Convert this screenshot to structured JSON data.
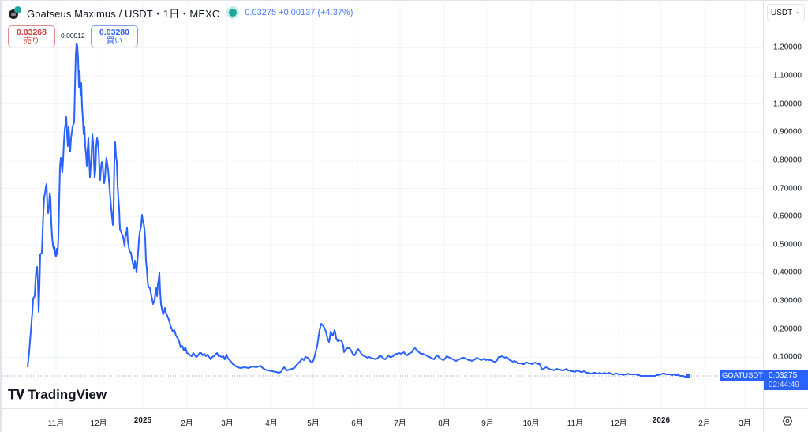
{
  "header": {
    "symbol": "Goatseus Maximus / USDT・1日・MEXC",
    "last": "0.03275",
    "change": "+0.00137",
    "change_pct": "(+4.37%)",
    "price_info": "0.03275  +0.00137 (+4.37%)"
  },
  "trade": {
    "sell_price": "0.03268",
    "sell_label": "売り",
    "spread": "0.00012",
    "buy_price": "0.03280",
    "buy_label": "買い"
  },
  "yaxis": {
    "currency": "USDT",
    "ticks": [
      "1.20000",
      "1.10000",
      "1.00000",
      "0.90000",
      "0.80000",
      "0.70000",
      "0.60000",
      "0.50000",
      "0.40000",
      "0.30000",
      "0.20000",
      "0.10000"
    ]
  },
  "xaxis": {
    "ticks": [
      "11月",
      "12月",
      "2025",
      "2月",
      "3月",
      "4月",
      "5月",
      "6月",
      "7月",
      "8月",
      "9月",
      "10月",
      "11月",
      "12月",
      "2026",
      "2月",
      "3月"
    ]
  },
  "last_price": {
    "ticker": "GOATUSDT",
    "price": "0.03275",
    "countdown": "02:44:49"
  },
  "branding": {
    "name": "TradingView"
  },
  "colors": {
    "line": "#2962ff",
    "sell": "#d23b3b",
    "buy": "#2962ff",
    "live": "#1aa89a"
  },
  "chart_data": {
    "type": "line",
    "title": "Goatseus Maximus / USDT・1日・MEXC",
    "xlabel": "",
    "ylabel": "USDT",
    "ylim": [
      0,
      1.25
    ],
    "grid": true,
    "x": [
      "2024-10-10",
      "2024-10-14",
      "2024-10-18",
      "2024-10-21",
      "2024-10-25",
      "2024-10-28",
      "2024-11-01",
      "2024-11-05",
      "2024-11-08",
      "2024-11-12",
      "2024-11-14",
      "2024-11-17",
      "2024-11-20",
      "2024-11-24",
      "2024-11-28",
      "2024-12-02",
      "2024-12-06",
      "2024-12-10",
      "2024-12-14",
      "2024-12-18",
      "2024-12-22",
      "2024-12-28",
      "2025-01-03",
      "2025-01-08",
      "2025-01-14",
      "2025-01-20",
      "2025-01-26",
      "2025-02-01",
      "2025-02-10",
      "2025-02-20",
      "2025-03-01",
      "2025-03-10",
      "2025-03-20",
      "2025-04-01",
      "2025-04-10",
      "2025-04-20",
      "2025-05-01",
      "2025-05-08",
      "2025-05-14",
      "2025-05-20",
      "2025-05-28",
      "2025-06-10",
      "2025-06-25",
      "2025-07-10",
      "2025-07-20",
      "2025-08-01",
      "2025-08-15",
      "2025-09-01",
      "2025-09-15",
      "2025-10-01",
      "2025-10-10",
      "2025-10-20",
      "2025-11-01",
      "2025-11-15",
      "2025-12-01",
      "2025-12-15",
      "2026-01-01",
      "2026-01-15",
      "2026-01-25"
    ],
    "values": [
      0.04,
      0.2,
      0.41,
      0.27,
      0.66,
      0.71,
      0.46,
      0.62,
      0.9,
      0.8,
      1.2,
      1.0,
      0.82,
      0.75,
      0.88,
      0.76,
      0.72,
      0.62,
      0.52,
      0.45,
      0.43,
      0.58,
      0.4,
      0.37,
      0.35,
      0.25,
      0.15,
      0.12,
      0.1,
      0.075,
      0.07,
      0.06,
      0.05,
      0.07,
      0.1,
      0.09,
      0.21,
      0.17,
      0.19,
      0.13,
      0.12,
      0.1,
      0.1,
      0.14,
      0.15,
      0.11,
      0.1,
      0.09,
      0.11,
      0.09,
      0.09,
      0.06,
      0.05,
      0.045,
      0.04,
      0.04,
      0.035,
      0.04,
      0.033
    ]
  }
}
